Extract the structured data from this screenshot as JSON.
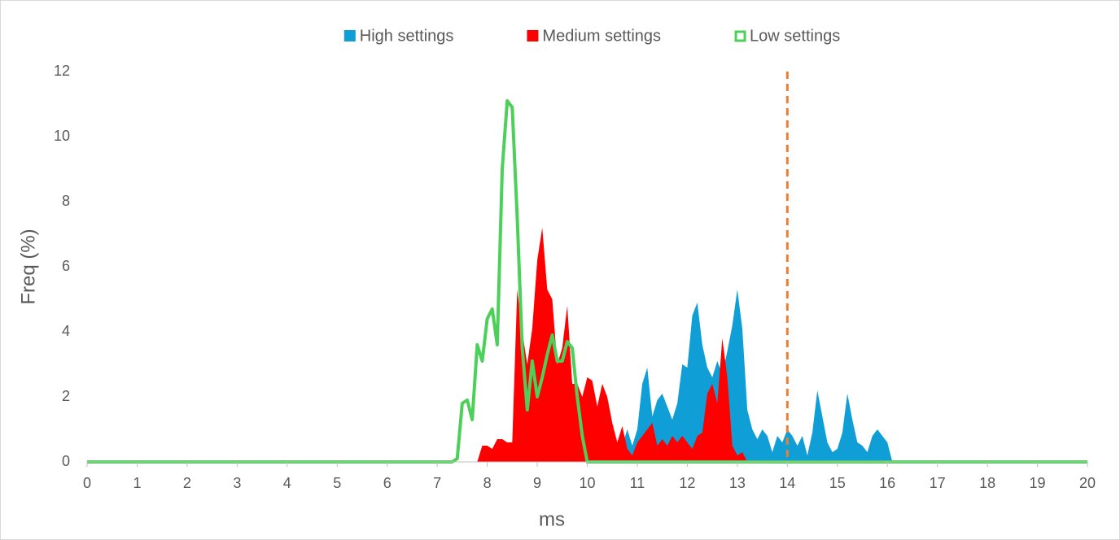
{
  "chart_data": {
    "type": "area",
    "x_label": "ms",
    "y_label": "Freq (%)",
    "x": [
      0,
      7.3,
      7.4,
      7.5,
      7.6,
      7.7,
      7.8,
      7.9,
      8.0,
      8.1,
      8.2,
      8.3,
      8.4,
      8.5,
      8.6,
      8.7,
      8.8,
      8.9,
      9.0,
      9.1,
      9.2,
      9.3,
      9.4,
      9.5,
      9.6,
      9.7,
      9.8,
      9.9,
      10.0,
      10.1,
      10.2,
      10.3,
      10.4,
      10.5,
      10.6,
      10.7,
      10.8,
      10.9,
      11.0,
      11.1,
      11.2,
      11.3,
      11.4,
      11.5,
      11.6,
      11.7,
      11.8,
      11.9,
      12.0,
      12.1,
      12.2,
      12.3,
      12.4,
      12.5,
      12.6,
      12.7,
      12.8,
      12.9,
      13.0,
      13.1,
      13.2,
      13.3,
      13.4,
      13.5,
      13.6,
      13.7,
      13.8,
      13.9,
      14.0,
      14.1,
      14.2,
      14.3,
      14.4,
      14.5,
      14.6,
      14.7,
      14.8,
      14.9,
      15.0,
      15.1,
      15.2,
      15.3,
      15.4,
      15.5,
      15.6,
      15.7,
      15.8,
      15.9,
      16.0,
      16.1,
      20
    ],
    "series": [
      {
        "name": "High settings",
        "color": "#0f9ed5",
        "type": "area",
        "values": [
          0,
          0,
          0,
          0,
          0,
          0,
          0,
          0,
          0,
          0,
          0,
          0,
          0,
          0,
          0,
          0,
          0,
          0,
          0,
          0,
          0,
          0,
          0,
          0,
          0,
          0,
          0,
          0,
          0,
          0,
          0,
          0,
          0,
          0,
          0,
          0.5,
          1.0,
          0.5,
          1.0,
          2.4,
          2.9,
          1.4,
          1.9,
          2.1,
          1.7,
          1.3,
          1.8,
          3.0,
          2.9,
          4.5,
          4.9,
          3.6,
          2.9,
          2.6,
          3.1,
          2.7,
          3.4,
          4.2,
          5.3,
          4.1,
          1.6,
          1.0,
          0.7,
          1.0,
          0.8,
          0.3,
          0.8,
          0.6,
          1.0,
          0.8,
          0.5,
          0.8,
          0.2,
          0.9,
          2.2,
          1.4,
          0.6,
          0.3,
          0.4,
          0.9,
          2.1,
          1.3,
          0.6,
          0.5,
          0.3,
          0.8,
          1.0,
          0.8,
          0.6,
          0,
          0
        ]
      },
      {
        "name": "Medium settings",
        "color": "#ff0000",
        "type": "area",
        "values": [
          0,
          0,
          0,
          0,
          0,
          0,
          0,
          0.5,
          0.5,
          0.4,
          0.7,
          0.7,
          0.6,
          0.6,
          5.3,
          4.0,
          3.0,
          4.1,
          6.2,
          7.2,
          5.3,
          5.0,
          3.0,
          3.5,
          4.8,
          2.4,
          2.4,
          2.0,
          2.6,
          2.5,
          1.7,
          2.4,
          2.0,
          1.2,
          0.6,
          1.1,
          0.4,
          0.2,
          0.6,
          0.8,
          1.0,
          1.2,
          0.5,
          0.7,
          0.5,
          0.8,
          0.6,
          0.8,
          0.6,
          0.4,
          0.8,
          0.9,
          2.1,
          2.4,
          1.8,
          3.8,
          2.6,
          0.5,
          0.2,
          0.3,
          0,
          0,
          0,
          0,
          0,
          0,
          0,
          0,
          0,
          0,
          0,
          0,
          0,
          0,
          0,
          0,
          0,
          0,
          0,
          0,
          0,
          0,
          0,
          0,
          0,
          0,
          0,
          0,
          0,
          0,
          0
        ]
      },
      {
        "name": "Low settings",
        "color": "#4dd05a",
        "type": "line",
        "values": [
          0,
          0,
          0.1,
          1.8,
          1.9,
          1.3,
          3.6,
          3.1,
          4.4,
          4.7,
          3.6,
          9.0,
          11.1,
          10.9,
          7.5,
          3.5,
          1.6,
          3.1,
          2.0,
          2.6,
          3.3,
          3.9,
          3.1,
          3.1,
          3.7,
          3.5,
          2.0,
          0.8,
          0,
          0,
          0,
          0,
          0,
          0,
          0,
          0,
          0,
          0,
          0,
          0,
          0,
          0,
          0,
          0,
          0,
          0,
          0,
          0,
          0,
          0,
          0,
          0,
          0,
          0,
          0,
          0,
          0,
          0,
          0,
          0,
          0,
          0,
          0,
          0,
          0,
          0,
          0,
          0,
          0,
          0,
          0,
          0,
          0,
          0,
          0,
          0,
          0,
          0,
          0,
          0,
          0,
          0,
          0,
          0,
          0,
          0,
          0,
          0,
          0,
          0,
          0
        ]
      }
    ],
    "reference_line": {
      "x": 14,
      "color": "#ed7d31"
    },
    "xlim": [
      0,
      20
    ],
    "xticks": [
      0,
      1,
      2,
      3,
      4,
      5,
      6,
      7,
      8,
      9,
      10,
      11,
      12,
      13,
      14,
      15,
      16,
      17,
      18,
      19,
      20
    ],
    "ylim": [
      0,
      12
    ],
    "yticks": [
      0,
      2,
      4,
      6,
      8,
      10,
      12
    ],
    "grid": false,
    "legend": "top"
  }
}
